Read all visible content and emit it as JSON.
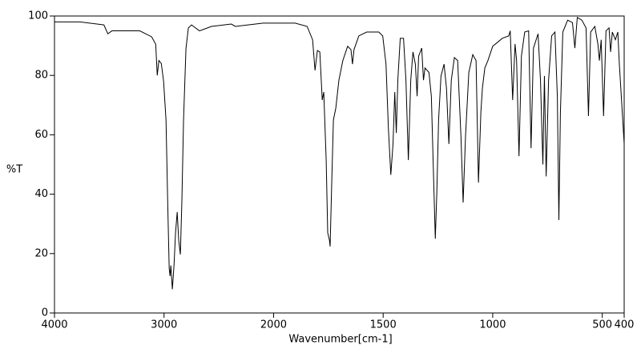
{
  "chart_data": {
    "type": "line",
    "x_label": "Wavenumber[cm-1]",
    "y_label": "%T",
    "x": [
      4000,
      3767,
      3549,
      3513,
      3476,
      3222,
      3113,
      3076,
      3062,
      3047,
      3025,
      3004,
      2982,
      2967,
      2953,
      2945,
      2938,
      2924,
      2909,
      2895,
      2880,
      2866,
      2851,
      2837,
      2822,
      2800,
      2778,
      2749,
      2677,
      2567,
      2386,
      2349,
      2095,
      1902,
      1847,
      1822,
      1811,
      1800,
      1789,
      1778,
      1771,
      1760,
      1753,
      1745,
      1742,
      1735,
      1727,
      1716,
      1702,
      1684,
      1662,
      1647,
      1640,
      1633,
      1611,
      1575,
      1520,
      1502,
      1487,
      1476,
      1465,
      1455,
      1447,
      1440,
      1433,
      1422,
      1407,
      1396,
      1385,
      1374,
      1364,
      1353,
      1345,
      1338,
      1324,
      1316,
      1309,
      1291,
      1280,
      1269,
      1262,
      1255,
      1247,
      1236,
      1222,
      1211,
      1200,
      1189,
      1175,
      1160,
      1145,
      1135,
      1124,
      1109,
      1091,
      1076,
      1065,
      1054,
      1047,
      1036,
      1022,
      1000,
      956,
      927,
      920,
      909,
      898,
      891,
      880,
      869,
      854,
      836,
      825,
      814,
      793,
      782,
      771,
      764,
      756,
      745,
      731,
      716,
      705,
      698,
      691,
      680,
      658,
      636,
      625,
      614,
      593,
      574,
      563,
      553,
      534,
      520,
      513,
      505,
      494,
      483,
      469,
      462,
      454,
      440,
      429,
      422,
      400
    ],
    "values": [
      98,
      98,
      97,
      94,
      95,
      95,
      93,
      90.5,
      80,
      85,
      84,
      78,
      65,
      38,
      15,
      12.4,
      16,
      8,
      16,
      27,
      34,
      24.5,
      19.7,
      38,
      65,
      89,
      96,
      97,
      95,
      96.5,
      97.3,
      96.5,
      97.6,
      97.6,
      96.5,
      92,
      81.7,
      88.4,
      87.9,
      71.7,
      74.4,
      51.5,
      27,
      24.5,
      22.4,
      43,
      65,
      69,
      78.4,
      85,
      89.8,
      88.7,
      83.8,
      88.7,
      93.3,
      94.6,
      94.6,
      93.3,
      83.8,
      62,
      46.5,
      56.9,
      74.4,
      60.6,
      78.4,
      92.5,
      92.5,
      78.4,
      51.5,
      78.4,
      87.9,
      83.8,
      73,
      86.5,
      89.2,
      78.4,
      82.5,
      81,
      73,
      43.4,
      25,
      40.7,
      65,
      79.8,
      83.8,
      75.7,
      56.9,
      78.4,
      86,
      85,
      59.6,
      37.2,
      59.6,
      81,
      87,
      85,
      43.9,
      67.6,
      75.7,
      82.5,
      85,
      89.8,
      92.5,
      93.3,
      95,
      71.7,
      90.6,
      85,
      52.8,
      86.5,
      94.6,
      95,
      55.5,
      89.2,
      94,
      78.4,
      50,
      79.8,
      46,
      78.4,
      93.3,
      94.6,
      73,
      31.3,
      67.6,
      94.6,
      98.6,
      97.8,
      89.2,
      99.5,
      98.6,
      96,
      66.3,
      94.6,
      96.5,
      90.6,
      85,
      92,
      66.3,
      95,
      96,
      87.9,
      94.6,
      92,
      94.6,
      83.8,
      57
    ],
    "color": "#000000",
    "xlim": [
      4000,
      400
    ],
    "xticks": [
      4000,
      3000,
      2000,
      1500,
      1000,
      500,
      400
    ],
    "x_scale_break": 2000,
    "x_scale_factor": 2,
    "ylim": [
      0,
      100
    ],
    "yticks": [
      0,
      20,
      40,
      60,
      80,
      100
    ],
    "grid": false
  }
}
